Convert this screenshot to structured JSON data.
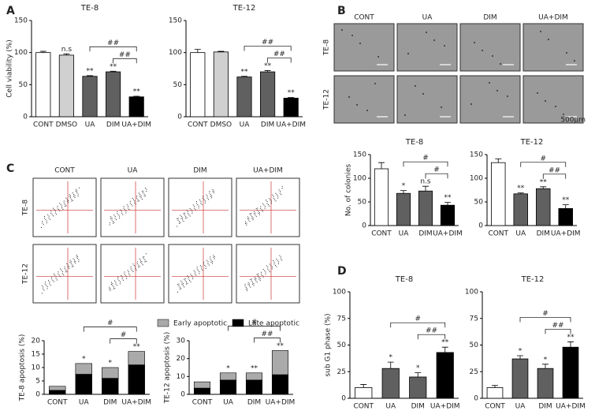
{
  "figure": {
    "panel_labels": [
      "A",
      "B",
      "C",
      "D"
    ],
    "panel_B": {
      "columns": [
        "CONT",
        "UA",
        "DIM",
        "UA+DIM"
      ],
      "rows": [
        "TE-8",
        "TE-12"
      ],
      "scale_bar": "500μm"
    },
    "panel_C": {
      "columns": [
        "CONT",
        "UA",
        "DIM",
        "UA+DIM"
      ],
      "rows": [
        "TE-8",
        "TE-12"
      ]
    }
  },
  "chart_data": [
    {
      "type": "bar",
      "title": "TE-8",
      "ylabel": "Cell viability (%)",
      "categories": [
        "CONT",
        "DMSO",
        "UA",
        "DIM",
        "UA+DIM"
      ],
      "values": [
        100,
        96,
        63,
        70,
        31
      ],
      "errors": [
        2,
        2,
        1,
        1,
        1
      ],
      "colors": [
        "#ffffff",
        "#d0d0d0",
        "#606060",
        "#606060",
        "#000000"
      ],
      "bar_labels": [
        null,
        "n.s",
        "**",
        "**",
        "**"
      ],
      "comparisons": [
        {
          "from": "DIM",
          "to": "UA+DIM",
          "label": "##"
        },
        {
          "from": "UA",
          "to": "UA+DIM",
          "label": "##"
        }
      ],
      "ylim": [
        0,
        150
      ],
      "yticks": [
        0,
        50,
        100,
        150
      ]
    },
    {
      "type": "bar",
      "title": "TE-12",
      "categories": [
        "CONT",
        "DMSO",
        "UA",
        "DIM",
        "UA+DIM"
      ],
      "values": [
        100,
        101,
        62,
        70,
        29
      ],
      "errors": [
        5,
        1,
        1,
        2,
        1
      ],
      "colors": [
        "#ffffff",
        "#d0d0d0",
        "#606060",
        "#606060",
        "#000000"
      ],
      "bar_labels": [
        null,
        null,
        "**",
        "**",
        "**"
      ],
      "comparisons": [
        {
          "from": "DIM",
          "to": "UA+DIM",
          "label": "##"
        },
        {
          "from": "UA",
          "to": "UA+DIM",
          "label": "##"
        }
      ],
      "ylim": [
        0,
        150
      ],
      "yticks": [
        0,
        50,
        100,
        150
      ]
    },
    {
      "type": "bar",
      "title": "TE-8",
      "ylabel": "No. of colonies",
      "categories": [
        "CONT",
        "UA",
        "DIM",
        "UA+DIM"
      ],
      "values": [
        120,
        68,
        73,
        43
      ],
      "errors": [
        13,
        6,
        10,
        6
      ],
      "colors": [
        "#ffffff",
        "#606060",
        "#606060",
        "#000000"
      ],
      "bar_labels": [
        null,
        "*",
        "n.s",
        "**"
      ],
      "comparisons": [
        {
          "from": "DIM",
          "to": "UA+DIM",
          "label": "#"
        },
        {
          "from": "UA",
          "to": "UA+DIM",
          "label": "#"
        }
      ],
      "ylim": [
        0,
        150
      ],
      "yticks": [
        0,
        50,
        100,
        150
      ]
    },
    {
      "type": "bar",
      "title": "TE-12",
      "categories": [
        "CONT",
        "UA",
        "DIM",
        "UA+DIM"
      ],
      "values": [
        133,
        67,
        78,
        36
      ],
      "errors": [
        8,
        2,
        4,
        8
      ],
      "colors": [
        "#ffffff",
        "#606060",
        "#606060",
        "#000000"
      ],
      "bar_labels": [
        null,
        "**",
        "**",
        "**"
      ],
      "comparisons": [
        {
          "from": "DIM",
          "to": "UA+DIM",
          "label": "##"
        },
        {
          "from": "UA",
          "to": "UA+DIM",
          "label": "#"
        }
      ],
      "ylim": [
        0,
        150
      ],
      "yticks": [
        0,
        50,
        100,
        150
      ]
    },
    {
      "type": "stacked_bar",
      "ylabel": "TE-8 apoptosis (%)",
      "categories": [
        "CONT",
        "UA",
        "DIM",
        "UA+DIM"
      ],
      "series": [
        {
          "name": "Late apoptotic",
          "color": "#000000",
          "values": [
            1.5,
            7.5,
            6,
            11
          ]
        },
        {
          "name": "Early apoptotic",
          "color": "#aaaaaa",
          "values": [
            1.5,
            4,
            4,
            5
          ]
        }
      ],
      "bar_labels": [
        null,
        "*",
        "*",
        "**"
      ],
      "comparisons": [
        {
          "from": "DIM",
          "to": "UA+DIM",
          "label": "#"
        },
        {
          "from": "UA",
          "to": "UA+DIM",
          "label": "#"
        }
      ],
      "legend": "top",
      "ylim": [
        0,
        20
      ],
      "yticks": [
        0,
        5,
        10,
        15,
        20
      ]
    },
    {
      "type": "stacked_bar",
      "ylabel": "TE-12 apoptosis (%)",
      "categories": [
        "CONT",
        "UA",
        "DIM",
        "UA+DIM"
      ],
      "series": [
        {
          "color": "#000000",
          "values": [
            3.5,
            8,
            8,
            11
          ]
        },
        {
          "color": "#aaaaaa",
          "values": [
            3.5,
            4,
            4,
            13.5
          ]
        }
      ],
      "bar_labels": [
        null,
        "*",
        "**",
        "**"
      ],
      "comparisons": [
        {
          "from": "DIM",
          "to": "UA+DIM",
          "label": "##"
        },
        {
          "from": "UA",
          "to": "UA+DIM",
          "label": "#"
        }
      ],
      "ylim": [
        0,
        30
      ],
      "yticks": [
        0,
        10,
        20,
        30
      ]
    },
    {
      "type": "bar",
      "title": "TE-8",
      "ylabel": "sub G1 phase (%)",
      "categories": [
        "CONT",
        "UA",
        "DIM",
        "UA+DIM"
      ],
      "values": [
        10,
        28,
        20,
        43
      ],
      "errors": [
        3,
        6,
        4,
        5
      ],
      "colors": [
        "#ffffff",
        "#606060",
        "#606060",
        "#000000"
      ],
      "bar_labels": [
        null,
        "*",
        "*",
        "**"
      ],
      "comparisons": [
        {
          "from": "DIM",
          "to": "UA+DIM",
          "label": "##"
        },
        {
          "from": "UA",
          "to": "UA+DIM",
          "label": "#"
        }
      ],
      "ylim": [
        0,
        100
      ],
      "yticks": [
        0,
        25,
        50,
        75,
        100
      ]
    },
    {
      "type": "bar",
      "title": "TE-12",
      "categories": [
        "CONT",
        "UA",
        "DIM",
        "UA+DIM"
      ],
      "values": [
        10,
        37,
        28,
        48
      ],
      "errors": [
        2,
        3,
        4,
        5
      ],
      "colors": [
        "#ffffff",
        "#606060",
        "#606060",
        "#000000"
      ],
      "bar_labels": [
        null,
        "*",
        "*",
        "**"
      ],
      "comparisons": [
        {
          "from": "DIM",
          "to": "UA+DIM",
          "label": "##"
        },
        {
          "from": "UA",
          "to": "UA+DIM",
          "label": "#"
        }
      ],
      "ylim": [
        0,
        100
      ],
      "yticks": [
        0,
        25,
        50,
        75,
        100
      ]
    }
  ]
}
